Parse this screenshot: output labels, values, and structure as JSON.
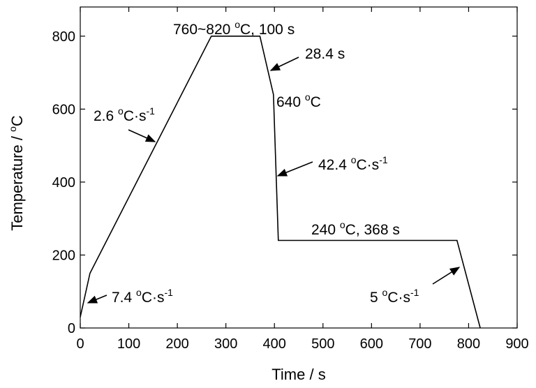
{
  "chart_data": {
    "type": "line",
    "title": "",
    "xlabel": "Time / s",
    "ylabel_main": "Temperature / ",
    "ylabel_sup": "o",
    "ylabel_unit": "C",
    "xlim": [
      0,
      900
    ],
    "ylim": [
      0,
      880
    ],
    "x_ticks": [
      0,
      100,
      200,
      300,
      400,
      500,
      600,
      700,
      800,
      900
    ],
    "y_ticks": [
      0,
      200,
      400,
      600,
      800
    ],
    "grid": false,
    "legend": "none",
    "series": [
      {
        "x": [
          0,
          20,
          270,
          370,
          398,
          408,
          776,
          824
        ],
        "y": [
          30,
          150,
          800,
          800,
          640,
          240,
          240,
          0
        ],
        "color": "#000000"
      }
    ],
    "annotations": [
      {
        "id": "a1",
        "parts": [
          "760~820 ",
          "o",
          "C, 100 s"
        ]
      },
      {
        "id": "a2",
        "parts": [
          "28.4 s"
        ]
      },
      {
        "id": "a3",
        "parts": [
          "640 ",
          "o",
          "C"
        ]
      },
      {
        "id": "a4",
        "parts": [
          "2.6 ",
          "o",
          "C·s",
          "-1"
        ]
      },
      {
        "id": "a5",
        "parts": [
          "42.4 ",
          "o",
          "C·s",
          "-1"
        ]
      },
      {
        "id": "a6",
        "parts": [
          "240 ",
          "o",
          "C, 368 s"
        ]
      },
      {
        "id": "a7",
        "parts": [
          "7.4 ",
          "o",
          "C·s",
          "-1"
        ]
      },
      {
        "id": "a8",
        "parts": [
          "5 ",
          "o",
          "C·s",
          "-1"
        ]
      }
    ]
  }
}
